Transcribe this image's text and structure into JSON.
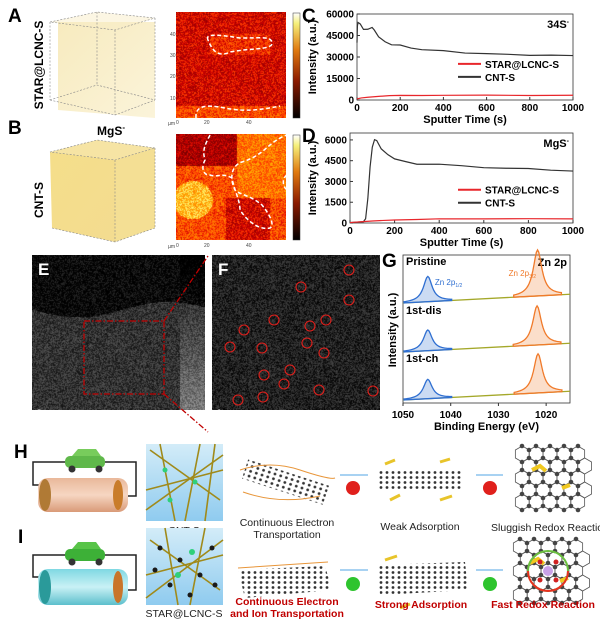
{
  "panels": {
    "A": {
      "label": "A",
      "sample": "STAR@LCNC-S"
    },
    "B": {
      "label": "B",
      "sample": "CNT-S",
      "species": "MgS",
      "species_sup": "-"
    },
    "E": {
      "label": "E",
      "scale_bar": "2 nm"
    },
    "F": {
      "label": "F",
      "scale_bar": "1 nm"
    },
    "H": {
      "label": "H",
      "material": "CNT-S",
      "step1": [
        "Continuous  Electron",
        "Transportation"
      ],
      "step2": "Weak Adsorption",
      "step3": "Sluggish  Redox  Reaction",
      "face": "sad"
    },
    "I": {
      "label": "I",
      "material": "STAR@LCNC-S",
      "step1": [
        "Continuous Electron",
        "and Ion Transportation"
      ],
      "step2": "Strong Adsorption",
      "step3": "Fast Redox Reaction",
      "face": "happy"
    }
  },
  "map_axis": {
    "unit": "µm",
    "ticks": [
      "0",
      "20",
      "40"
    ],
    "yticks": [
      "10",
      "20",
      "30",
      "40"
    ]
  },
  "colors": {
    "black_series": "#333333",
    "red_series": "#e8262b",
    "blue_peak": "#2f6fd1",
    "orange_peak": "#f07a2a",
    "baseline": "#a4a82a",
    "highlight_red": "#c00000",
    "sad_face": "#e0201c",
    "happy_face": "#2ec42e"
  },
  "chart_data": [
    {
      "panel": "C",
      "type": "line",
      "annotation": "34S",
      "annotation_sup": "-",
      "xlabel": "Sputter Time (s)",
      "ylabel": "Intensity (a.u.)",
      "xlim": [
        0,
        1000
      ],
      "ylim": [
        0,
        60000
      ],
      "xticks": [
        0,
        200,
        400,
        600,
        800,
        1000
      ],
      "yticks": [
        0,
        15000,
        30000,
        45000,
        60000
      ],
      "legend": "center-right",
      "series": [
        {
          "name": "STAR@LCNC-S",
          "color": "#e8262b",
          "x": [
            0,
            20,
            50,
            100,
            150,
            200,
            300,
            400,
            600,
            800,
            1000
          ],
          "y": [
            800,
            1400,
            2000,
            2600,
            2900,
            3100,
            3200,
            3200,
            3300,
            3300,
            3300
          ]
        },
        {
          "name": "CNT-S",
          "color": "#333333",
          "x": [
            0,
            2,
            5,
            15,
            30,
            50,
            70,
            80,
            100,
            130,
            160,
            200,
            250,
            300,
            400,
            500,
            600,
            700,
            800,
            900,
            1000
          ],
          "y": [
            40000,
            52000,
            54500,
            52500,
            49500,
            50000,
            50500,
            48500,
            43500,
            41000,
            39000,
            37800,
            36500,
            35200,
            34000,
            33300,
            32600,
            32200,
            31800,
            31400,
            31000
          ]
        }
      ]
    },
    {
      "panel": "D",
      "type": "line",
      "annotation": "MgS",
      "annotation_sup": "-",
      "xlabel": "Sputter Time (s)",
      "ylabel": "Intensity (a.u.)",
      "xlim": [
        0,
        1000
      ],
      "ylim": [
        0,
        6500
      ],
      "xticks": [
        0,
        200,
        400,
        600,
        800,
        1000
      ],
      "yticks": [
        0,
        1500,
        3000,
        4500,
        6000
      ],
      "legend": "center-right",
      "series": [
        {
          "name": "STAR@LCNC-S",
          "color": "#e8262b",
          "x": [
            0,
            50,
            100,
            150,
            200,
            300,
            400,
            600,
            800,
            1000
          ],
          "y": [
            30,
            100,
            160,
            200,
            230,
            260,
            280,
            300,
            300,
            300
          ]
        },
        {
          "name": "CNT-S",
          "color": "#333333",
          "x": [
            0,
            60,
            70,
            80,
            90,
            100,
            110,
            120,
            140,
            170,
            200,
            250,
            300,
            400,
            500,
            600,
            700,
            800,
            900,
            1000
          ],
          "y": [
            30,
            120,
            300,
            1800,
            4000,
            5500,
            6000,
            5900,
            5400,
            5000,
            4650,
            4400,
            4300,
            4200,
            4150,
            4050,
            3950,
            3900,
            3850,
            3750
          ]
        }
      ]
    },
    {
      "panel": "G",
      "type": "line",
      "title": "Zn 2p",
      "xlabel": "Binding Energy (eV)",
      "ylabel": "Intensity (a.u.)",
      "xlim": [
        1050,
        1015
      ],
      "xticks": [
        1050,
        1040,
        1030,
        1020
      ],
      "reversed_x": true,
      "peak_labels": [
        {
          "text": "Zn 2p",
          "sub": "1/2",
          "color": "#2f6fd1",
          "energy": 1045
        },
        {
          "text": "Zn 2p",
          "sub": "3/2",
          "color": "#f07a2a",
          "energy": 1022
        }
      ],
      "series": [
        {
          "name": "Pristine",
          "peaks": [
            {
              "energy": 1044.8,
              "height": 0.55,
              "color": "#2f6fd1"
            },
            {
              "energy": 1021.8,
              "height": 1.0,
              "color": "#f07a2a"
            }
          ]
        },
        {
          "name": "1st-dis",
          "peaks": [
            {
              "energy": 1044.8,
              "height": 0.45,
              "color": "#2f6fd1"
            },
            {
              "energy": 1021.9,
              "height": 0.85,
              "color": "#f07a2a"
            }
          ]
        },
        {
          "name": "1st-ch",
          "peaks": [
            {
              "energy": 1044.8,
              "height": 0.42,
              "color": "#2f6fd1"
            },
            {
              "energy": 1021.7,
              "height": 0.85,
              "color": "#f07a2a"
            }
          ]
        }
      ]
    }
  ]
}
